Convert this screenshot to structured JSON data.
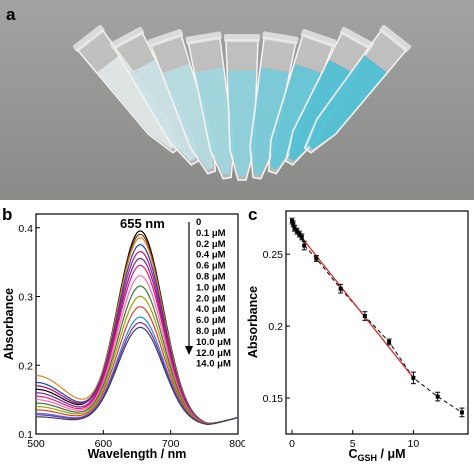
{
  "panel_a": {
    "label": "a"
  },
  "chart_data": [
    {
      "type": "line",
      "panel_label": "b",
      "annotation": "655 nm",
      "xlabel": "Wavelength / nm",
      "ylabel": "Absorbance",
      "xlim": [
        500,
        800
      ],
      "ylim": [
        0.1,
        0.42
      ],
      "x_ticks": [
        500,
        600,
        700,
        800
      ],
      "y_ticks": [
        0.1,
        0.2,
        0.3,
        0.4
      ],
      "peak_wavelength": 655,
      "valley_wavelength": 755,
      "legend_placement": "right",
      "series": [
        {
          "name": "0",
          "peak": 0.395,
          "short_end": 0.165,
          "color": "#000000"
        },
        {
          "name": "0.1 μM",
          "peak": 0.39,
          "short_end": 0.17,
          "color": "#7a3b00"
        },
        {
          "name": "0.2 μM",
          "peak": 0.385,
          "short_end": 0.185,
          "color": "#e67e22"
        },
        {
          "name": "0.4 μM",
          "peak": 0.375,
          "short_end": 0.175,
          "color": "#1f3fbf"
        },
        {
          "name": "0.6 μM",
          "peak": 0.365,
          "short_end": 0.17,
          "color": "#c0157a"
        },
        {
          "name": "0.8 μM",
          "peak": 0.355,
          "short_end": 0.16,
          "color": "#7b1fa2"
        },
        {
          "name": "1.0 μM",
          "peak": 0.345,
          "short_end": 0.155,
          "color": "#e91e63"
        },
        {
          "name": "2.0 μM",
          "peak": 0.33,
          "short_end": 0.15,
          "color": "#ff69b4"
        },
        {
          "name": "4.0 μM",
          "peak": 0.315,
          "short_end": 0.145,
          "color": "#2e7d32"
        },
        {
          "name": "6.0 μM",
          "peak": 0.3,
          "short_end": 0.14,
          "color": "#a0a000"
        },
        {
          "name": "8.0 μM",
          "peak": 0.285,
          "short_end": 0.135,
          "color": "#e53935"
        },
        {
          "name": "10.0 μM",
          "peak": 0.27,
          "short_end": 0.13,
          "color": "#1e88e5"
        },
        {
          "name": "12.0 μM",
          "peak": 0.262,
          "short_end": 0.128,
          "color": "#8e24aa"
        },
        {
          "name": "14.0 μM",
          "peak": 0.255,
          "short_end": 0.125,
          "color": "#37474f"
        }
      ]
    },
    {
      "type": "scatter",
      "panel_label": "c",
      "xlabel_main": "C",
      "xlabel_sub": "GSH",
      "xlabel_unit": " / μM",
      "ylabel": "Absorbance",
      "xlim": [
        -0.5,
        14.5
      ],
      "ylim": [
        0.125,
        0.28
      ],
      "x_ticks": [
        0,
        5,
        10
      ],
      "y_ticks": [
        0.15,
        0.2,
        0.25
      ],
      "points": {
        "x": [
          0,
          0.1,
          0.2,
          0.4,
          0.6,
          0.8,
          1.0,
          2.0,
          4.0,
          6.0,
          8.0,
          10.0,
          12.0,
          14.0
        ],
        "y": [
          0.273,
          0.271,
          0.268,
          0.266,
          0.264,
          0.262,
          0.256,
          0.247,
          0.226,
          0.207,
          0.189,
          0.164,
          0.151,
          0.14
        ],
        "err": [
          0.002,
          0.002,
          0.002,
          0.002,
          0.002,
          0.002,
          0.003,
          0.002,
          0.003,
          0.003,
          0.002,
          0.004,
          0.003,
          0.003
        ]
      },
      "linear_fit": {
        "x": [
          0,
          10
        ],
        "y": [
          0.27,
          0.164
        ],
        "color": "#d32f2f"
      },
      "dashed_fit": {
        "color": "#000000"
      }
    }
  ]
}
